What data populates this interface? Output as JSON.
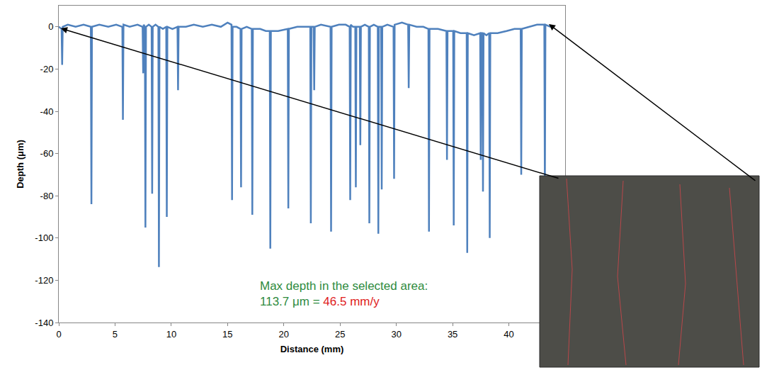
{
  "chart_data": {
    "type": "line",
    "x_label": "Distance (mm)",
    "y_label": "Depth (μm)",
    "color": "#4f81bd",
    "grid": false,
    "xlim": [
      0,
      45
    ],
    "xticks": [
      0,
      5,
      10,
      15,
      20,
      25,
      30,
      35,
      40
    ],
    "ylim": [
      -140,
      10
    ],
    "yticks": [
      -140,
      -120,
      -100,
      -80,
      -60,
      -40,
      -20,
      0
    ],
    "annotations": [
      {
        "text": "Max depth in the selected area:",
        "color": "#2e8b3e"
      },
      {
        "text": "113.7 μm =",
        "color": "#2e8b3e"
      },
      {
        "text": "46.5 mm/y",
        "color": "#e0201b"
      }
    ],
    "x": [
      0,
      0.25,
      0.3,
      0.35,
      0.8,
      1.5,
      2.2,
      2.85,
      2.9,
      2.95,
      3.6,
      4.4,
      5.1,
      5.65,
      5.7,
      5.75,
      6.3,
      7.0,
      7.45,
      7.5,
      7.55,
      7.65,
      7.7,
      7.75,
      8.0,
      8.25,
      8.3,
      8.35,
      8.6,
      8.85,
      8.9,
      8.95,
      9.25,
      9.55,
      9.6,
      9.65,
      10.1,
      10.55,
      10.6,
      10.65,
      11.3,
      12.0,
      12.8,
      13.6,
      14.4,
      15.0,
      15.35,
      15.4,
      15.45,
      15.8,
      16.15,
      16.2,
      16.25,
      16.7,
      17.15,
      17.2,
      17.25,
      17.9,
      18.4,
      18.75,
      18.8,
      18.85,
      19.5,
      20.35,
      20.4,
      20.45,
      21.2,
      21.9,
      22.35,
      22.4,
      22.45,
      22.65,
      22.7,
      22.75,
      23.3,
      24.15,
      24.2,
      24.25,
      24.9,
      25.5,
      25.85,
      25.9,
      25.95,
      26.15,
      26.35,
      26.4,
      26.45,
      26.75,
      26.8,
      26.85,
      27.2,
      27.55,
      27.6,
      27.65,
      28.0,
      28.35,
      28.4,
      28.45,
      28.65,
      28.7,
      28.75,
      29.2,
      29.75,
      29.8,
      29.85,
      30.5,
      31.05,
      31.1,
      31.15,
      31.8,
      32.4,
      32.85,
      32.9,
      32.95,
      33.7,
      34.45,
      34.5,
      34.55,
      34.8,
      35.05,
      35.1,
      35.15,
      35.7,
      36.25,
      36.3,
      36.35,
      36.9,
      37.45,
      37.5,
      37.55,
      37.65,
      37.7,
      37.75,
      38.0,
      38.25,
      38.3,
      38.35,
      39.0,
      39.8,
      40.5,
      41.05,
      41.1,
      41.15,
      41.8,
      42.5,
      43.15,
      43.2,
      43.25,
      43.7
    ],
    "values": [
      0,
      -1,
      -18,
      0,
      1,
      0,
      1,
      0,
      -84,
      0,
      1,
      0,
      1,
      0,
      -44,
      1,
      0,
      1,
      0,
      -22,
      1,
      0,
      -95,
      0,
      1,
      0,
      -79,
      0,
      1,
      0,
      -113.7,
      0,
      -1,
      0,
      -90,
      0,
      -1,
      0,
      -30,
      0,
      0,
      1,
      0,
      1,
      0,
      2,
      1,
      -82,
      0,
      0,
      -1,
      -76,
      -1,
      0,
      -1,
      -89,
      -1,
      -1,
      -2,
      -2,
      -105,
      -2,
      -2,
      -1,
      -86,
      -1,
      0,
      0,
      0,
      -93,
      0,
      0,
      -30,
      0,
      1,
      0,
      -97,
      0,
      1,
      1,
      0,
      -82,
      1,
      0,
      0,
      -76,
      0,
      0,
      -56,
      0,
      1,
      0,
      -93,
      0,
      1,
      0,
      -98,
      0,
      0,
      -77,
      0,
      1,
      0,
      -72,
      1,
      2,
      1,
      -29,
      1,
      0,
      0,
      -1,
      -97,
      -1,
      -1,
      -2,
      -63,
      -2,
      -2,
      -2,
      -94,
      -2,
      -3,
      -3,
      -107,
      -3,
      -4,
      -3,
      -63,
      -3,
      -3,
      -78,
      -3,
      -4,
      -3,
      -100,
      -3,
      -3,
      -2,
      -1,
      -1,
      -70,
      -1,
      0,
      1,
      1,
      -78,
      1,
      0
    ]
  }
}
